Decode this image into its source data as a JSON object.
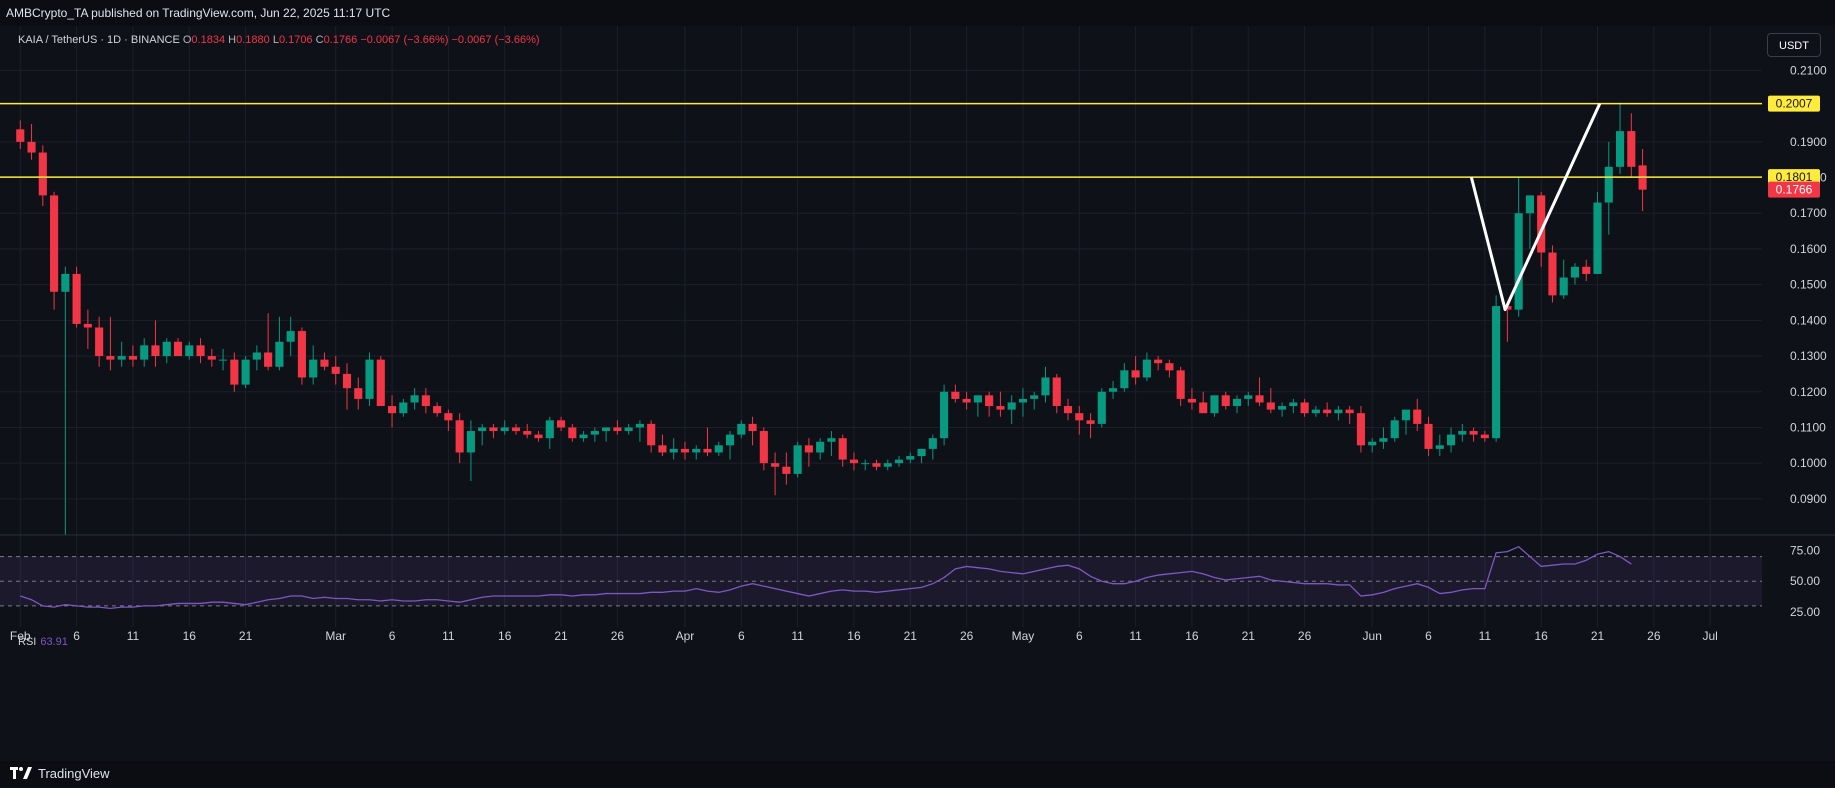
{
  "header": {
    "publisher_line": "AMBCrypto_TA published on TradingView.com, Jun 22, 2025 11:17 UTC"
  },
  "legend": {
    "symbol": "KAIA / TetherUS · 1D · BINANCE",
    "open_label": "O",
    "open": "0.1834",
    "high_label": "H",
    "high": "0.1880",
    "low_label": "L",
    "low": "0.1706",
    "close_label": "C",
    "close": "0.1766",
    "change": "−0.0067 (−3.66%)",
    "change2": "−0.0067 (−3.66%)"
  },
  "currency_button": "USDT",
  "rsi": {
    "label": "RSI",
    "value": "63.91"
  },
  "footer": {
    "brand": "TradingView"
  },
  "colors": {
    "up": "#089981",
    "down": "#f23645",
    "level": "#ffeb3b",
    "rsi_line": "#7e57c2",
    "pattern": "#ffffff",
    "background": "#0f1119"
  },
  "chart_data": {
    "type": "candlestick",
    "price_axis": {
      "ticks": [
        "0.2100",
        "0.1900",
        "0.1800",
        "0.1700",
        "0.1600",
        "0.1500",
        "0.1400",
        "0.1300",
        "0.1200",
        "0.1100",
        "0.1000",
        "0.0900"
      ],
      "tick_values": [
        0.21,
        0.19,
        0.18,
        0.17,
        0.16,
        0.15,
        0.14,
        0.13,
        0.12,
        0.11,
        0.1,
        0.09
      ],
      "range": [
        0.081,
        0.2146
      ]
    },
    "x_axis": {
      "ticks": [
        "Feb",
        "6",
        "11",
        "16",
        "21",
        "Mar",
        "6",
        "11",
        "16",
        "21",
        "26",
        "Apr",
        "6",
        "11",
        "16",
        "21",
        "26",
        "May",
        "6",
        "11",
        "16",
        "21",
        "26",
        "Jun",
        "6",
        "11",
        "16",
        "21",
        "26",
        "Jul"
      ],
      "tick_days": [
        0,
        5,
        10,
        15,
        20,
        28,
        33,
        38,
        43,
        48,
        53,
        59,
        64,
        69,
        74,
        79,
        84,
        89,
        94,
        99,
        104,
        109,
        114,
        120,
        125,
        130,
        135,
        140,
        145,
        150
      ],
      "start": "2025-02-01",
      "day_range": [
        -1.8,
        154.6
      ]
    },
    "levels": [
      {
        "label": "0.2007",
        "value": 0.2007
      },
      {
        "label": "0.1801",
        "value": 0.1801
      }
    ],
    "last_price": {
      "label": "0.1766",
      "value": 0.1766
    },
    "pattern_points": [
      [
        128.8,
        0.1801
      ],
      [
        131.8,
        0.143
      ],
      [
        140.2,
        0.2007
      ]
    ],
    "ohlc": [
      [
        0.1935,
        0.196,
        0.188,
        0.19
      ],
      [
        0.19,
        0.195,
        0.185,
        0.187
      ],
      [
        0.187,
        0.189,
        0.172,
        0.175
      ],
      [
        0.175,
        0.176,
        0.143,
        0.148
      ],
      [
        0.148,
        0.155,
        0.08,
        0.153
      ],
      [
        0.153,
        0.155,
        0.138,
        0.139
      ],
      [
        0.139,
        0.143,
        0.132,
        0.138
      ],
      [
        0.138,
        0.141,
        0.127,
        0.13
      ],
      [
        0.13,
        0.141,
        0.126,
        0.129
      ],
      [
        0.129,
        0.134,
        0.127,
        0.13
      ],
      [
        0.13,
        0.133,
        0.127,
        0.129
      ],
      [
        0.129,
        0.135,
        0.127,
        0.133
      ],
      [
        0.133,
        0.14,
        0.127,
        0.13
      ],
      [
        0.13,
        0.135,
        0.128,
        0.134
      ],
      [
        0.134,
        0.135,
        0.131,
        0.13
      ],
      [
        0.13,
        0.134,
        0.129,
        0.133
      ],
      [
        0.133,
        0.135,
        0.128,
        0.13
      ],
      [
        0.13,
        0.132,
        0.127,
        0.129
      ],
      [
        0.129,
        0.132,
        0.126,
        0.129
      ],
      [
        0.129,
        0.131,
        0.12,
        0.122
      ],
      [
        0.122,
        0.13,
        0.121,
        0.129
      ],
      [
        0.129,
        0.133,
        0.126,
        0.131
      ],
      [
        0.131,
        0.142,
        0.126,
        0.127
      ],
      [
        0.127,
        0.141,
        0.126,
        0.134
      ],
      [
        0.134,
        0.141,
        0.13,
        0.137
      ],
      [
        0.137,
        0.138,
        0.122,
        0.124
      ],
      [
        0.124,
        0.133,
        0.122,
        0.129
      ],
      [
        0.129,
        0.131,
        0.126,
        0.127
      ],
      [
        0.127,
        0.13,
        0.122,
        0.125
      ],
      [
        0.125,
        0.128,
        0.115,
        0.121
      ],
      [
        0.121,
        0.124,
        0.115,
        0.118
      ],
      [
        0.118,
        0.131,
        0.116,
        0.129
      ],
      [
        0.129,
        0.13,
        0.116,
        0.116
      ],
      [
        0.116,
        0.119,
        0.11,
        0.114
      ],
      [
        0.114,
        0.118,
        0.113,
        0.117
      ],
      [
        0.117,
        0.121,
        0.115,
        0.119
      ],
      [
        0.119,
        0.121,
        0.114,
        0.116
      ],
      [
        0.116,
        0.117,
        0.113,
        0.114
      ],
      [
        0.114,
        0.115,
        0.109,
        0.112
      ],
      [
        0.112,
        0.114,
        0.1,
        0.103
      ],
      [
        0.103,
        0.112,
        0.095,
        0.109
      ],
      [
        0.109,
        0.111,
        0.105,
        0.11
      ],
      [
        0.11,
        0.111,
        0.107,
        0.109
      ],
      [
        0.109,
        0.112,
        0.108,
        0.11
      ],
      [
        0.11,
        0.111,
        0.108,
        0.109
      ],
      [
        0.109,
        0.111,
        0.107,
        0.108
      ],
      [
        0.108,
        0.109,
        0.106,
        0.107
      ],
      [
        0.107,
        0.113,
        0.104,
        0.112
      ],
      [
        0.112,
        0.113,
        0.109,
        0.11
      ],
      [
        0.11,
        0.111,
        0.106,
        0.107
      ],
      [
        0.107,
        0.109,
        0.106,
        0.108
      ],
      [
        0.108,
        0.11,
        0.106,
        0.109
      ],
      [
        0.109,
        0.11,
        0.106,
        0.11
      ],
      [
        0.11,
        0.112,
        0.108,
        0.109
      ],
      [
        0.109,
        0.111,
        0.108,
        0.11
      ],
      [
        0.11,
        0.112,
        0.106,
        0.111
      ],
      [
        0.111,
        0.112,
        0.103,
        0.105
      ],
      [
        0.105,
        0.108,
        0.102,
        0.103
      ],
      [
        0.103,
        0.107,
        0.101,
        0.104
      ],
      [
        0.104,
        0.106,
        0.101,
        0.103
      ],
      [
        0.103,
        0.105,
        0.101,
        0.104
      ],
      [
        0.104,
        0.11,
        0.102,
        0.103
      ],
      [
        0.103,
        0.106,
        0.102,
        0.105
      ],
      [
        0.105,
        0.109,
        0.101,
        0.108
      ],
      [
        0.108,
        0.112,
        0.107,
        0.111
      ],
      [
        0.111,
        0.113,
        0.105,
        0.109
      ],
      [
        0.109,
        0.11,
        0.098,
        0.1
      ],
      [
        0.1,
        0.103,
        0.091,
        0.099
      ],
      [
        0.099,
        0.103,
        0.094,
        0.097
      ],
      [
        0.097,
        0.106,
        0.096,
        0.105
      ],
      [
        0.105,
        0.107,
        0.099,
        0.103
      ],
      [
        0.103,
        0.107,
        0.101,
        0.106
      ],
      [
        0.106,
        0.109,
        0.102,
        0.107
      ],
      [
        0.107,
        0.108,
        0.099,
        0.101
      ],
      [
        0.101,
        0.103,
        0.098,
        0.1
      ],
      [
        0.1,
        0.101,
        0.098,
        0.1
      ],
      [
        0.1,
        0.101,
        0.098,
        0.099
      ],
      [
        0.099,
        0.101,
        0.098,
        0.1
      ],
      [
        0.1,
        0.102,
        0.099,
        0.101
      ],
      [
        0.101,
        0.103,
        0.1,
        0.102
      ],
      [
        0.102,
        0.104,
        0.1,
        0.104
      ],
      [
        0.104,
        0.108,
        0.101,
        0.107
      ],
      [
        0.107,
        0.122,
        0.105,
        0.12
      ],
      [
        0.12,
        0.122,
        0.117,
        0.118
      ],
      [
        0.118,
        0.12,
        0.115,
        0.117
      ],
      [
        0.117,
        0.119,
        0.113,
        0.119
      ],
      [
        0.119,
        0.12,
        0.113,
        0.116
      ],
      [
        0.116,
        0.12,
        0.113,
        0.115
      ],
      [
        0.115,
        0.119,
        0.111,
        0.117
      ],
      [
        0.117,
        0.121,
        0.113,
        0.118
      ],
      [
        0.118,
        0.12,
        0.115,
        0.119
      ],
      [
        0.119,
        0.127,
        0.117,
        0.124
      ],
      [
        0.124,
        0.125,
        0.114,
        0.116
      ],
      [
        0.116,
        0.118,
        0.112,
        0.114
      ],
      [
        0.114,
        0.116,
        0.108,
        0.112
      ],
      [
        0.112,
        0.114,
        0.107,
        0.111
      ],
      [
        0.111,
        0.121,
        0.11,
        0.12
      ],
      [
        0.12,
        0.123,
        0.118,
        0.121
      ],
      [
        0.121,
        0.128,
        0.12,
        0.126
      ],
      [
        0.126,
        0.13,
        0.122,
        0.124
      ],
      [
        0.124,
        0.131,
        0.123,
        0.129
      ],
      [
        0.129,
        0.13,
        0.126,
        0.128
      ],
      [
        0.128,
        0.129,
        0.124,
        0.126
      ],
      [
        0.126,
        0.127,
        0.116,
        0.118
      ],
      [
        0.118,
        0.121,
        0.115,
        0.117
      ],
      [
        0.117,
        0.12,
        0.114,
        0.114
      ],
      [
        0.114,
        0.119,
        0.113,
        0.119
      ],
      [
        0.119,
        0.12,
        0.115,
        0.116
      ],
      [
        0.116,
        0.119,
        0.114,
        0.118
      ],
      [
        0.118,
        0.12,
        0.116,
        0.119
      ],
      [
        0.119,
        0.124,
        0.116,
        0.117
      ],
      [
        0.117,
        0.121,
        0.114,
        0.115
      ],
      [
        0.115,
        0.117,
        0.113,
        0.116
      ],
      [
        0.116,
        0.118,
        0.114,
        0.117
      ],
      [
        0.117,
        0.118,
        0.113,
        0.114
      ],
      [
        0.114,
        0.116,
        0.113,
        0.115
      ],
      [
        0.115,
        0.117,
        0.113,
        0.114
      ],
      [
        0.114,
        0.116,
        0.112,
        0.115
      ],
      [
        0.115,
        0.116,
        0.111,
        0.114
      ],
      [
        0.114,
        0.116,
        0.103,
        0.105
      ],
      [
        0.105,
        0.107,
        0.103,
        0.106
      ],
      [
        0.106,
        0.11,
        0.104,
        0.107
      ],
      [
        0.107,
        0.113,
        0.106,
        0.112
      ],
      [
        0.112,
        0.114,
        0.108,
        0.115
      ],
      [
        0.115,
        0.118,
        0.109,
        0.111
      ],
      [
        0.111,
        0.113,
        0.102,
        0.104
      ],
      [
        0.104,
        0.108,
        0.102,
        0.105
      ],
      [
        0.105,
        0.11,
        0.103,
        0.108
      ],
      [
        0.108,
        0.111,
        0.106,
        0.109
      ],
      [
        0.109,
        0.11,
        0.106,
        0.108
      ],
      [
        0.108,
        0.109,
        0.106,
        0.107
      ],
      [
        0.107,
        0.147,
        0.106,
        0.144
      ],
      [
        0.144,
        0.145,
        0.134,
        0.143
      ],
      [
        0.143,
        0.18,
        0.141,
        0.17
      ],
      [
        0.17,
        0.175,
        0.16,
        0.175
      ],
      [
        0.175,
        0.176,
        0.155,
        0.159
      ],
      [
        0.159,
        0.161,
        0.145,
        0.147
      ],
      [
        0.147,
        0.157,
        0.146,
        0.152
      ],
      [
        0.152,
        0.156,
        0.15,
        0.155
      ],
      [
        0.155,
        0.157,
        0.151,
        0.153
      ],
      [
        0.153,
        0.176,
        0.153,
        0.173
      ],
      [
        0.173,
        0.19,
        0.164,
        0.183
      ],
      [
        0.183,
        0.201,
        0.181,
        0.193
      ],
      [
        0.193,
        0.198,
        0.18,
        0.183
      ],
      [
        0.1834,
        0.188,
        0.1706,
        0.1766
      ]
    ]
  },
  "rsi_panel": {
    "levels": [
      75,
      50,
      25
    ],
    "tick_labels": [
      "75.00",
      "50.00",
      "25.00"
    ],
    "dashed_levels": [
      70,
      50,
      30
    ],
    "band": [
      30,
      70
    ],
    "range": [
      21,
      81
    ],
    "values": [
      38,
      35,
      30,
      29,
      31,
      30,
      29,
      29,
      28,
      29,
      29,
      30,
      30,
      31,
      32,
      32,
      32,
      33,
      33,
      32,
      31,
      33,
      35,
      36,
      38,
      38,
      36,
      37,
      36,
      36,
      35,
      35,
      34,
      35,
      34,
      34,
      35,
      35,
      34,
      33,
      35,
      37,
      38,
      38,
      38,
      38,
      38,
      39,
      39,
      38,
      39,
      39,
      40,
      40,
      40,
      40,
      41,
      41,
      42,
      42,
      44,
      42,
      41,
      43,
      46,
      48,
      46,
      44,
      42,
      40,
      38,
      40,
      42,
      43,
      42,
      42,
      41,
      42,
      43,
      44,
      45,
      48,
      53,
      60,
      62,
      61,
      60,
      58,
      57,
      56,
      58,
      60,
      62,
      63,
      60,
      54,
      50,
      48,
      48,
      50,
      53,
      55,
      56,
      57,
      58,
      56,
      53,
      51,
      52,
      53,
      54,
      51,
      50,
      49,
      48,
      48,
      48,
      47,
      47,
      38,
      39,
      41,
      44,
      46,
      48,
      45,
      40,
      41,
      43,
      44,
      44,
      73,
      74,
      78,
      70,
      62,
      63,
      64,
      64,
      67,
      72,
      74,
      70,
      63.91
    ]
  }
}
